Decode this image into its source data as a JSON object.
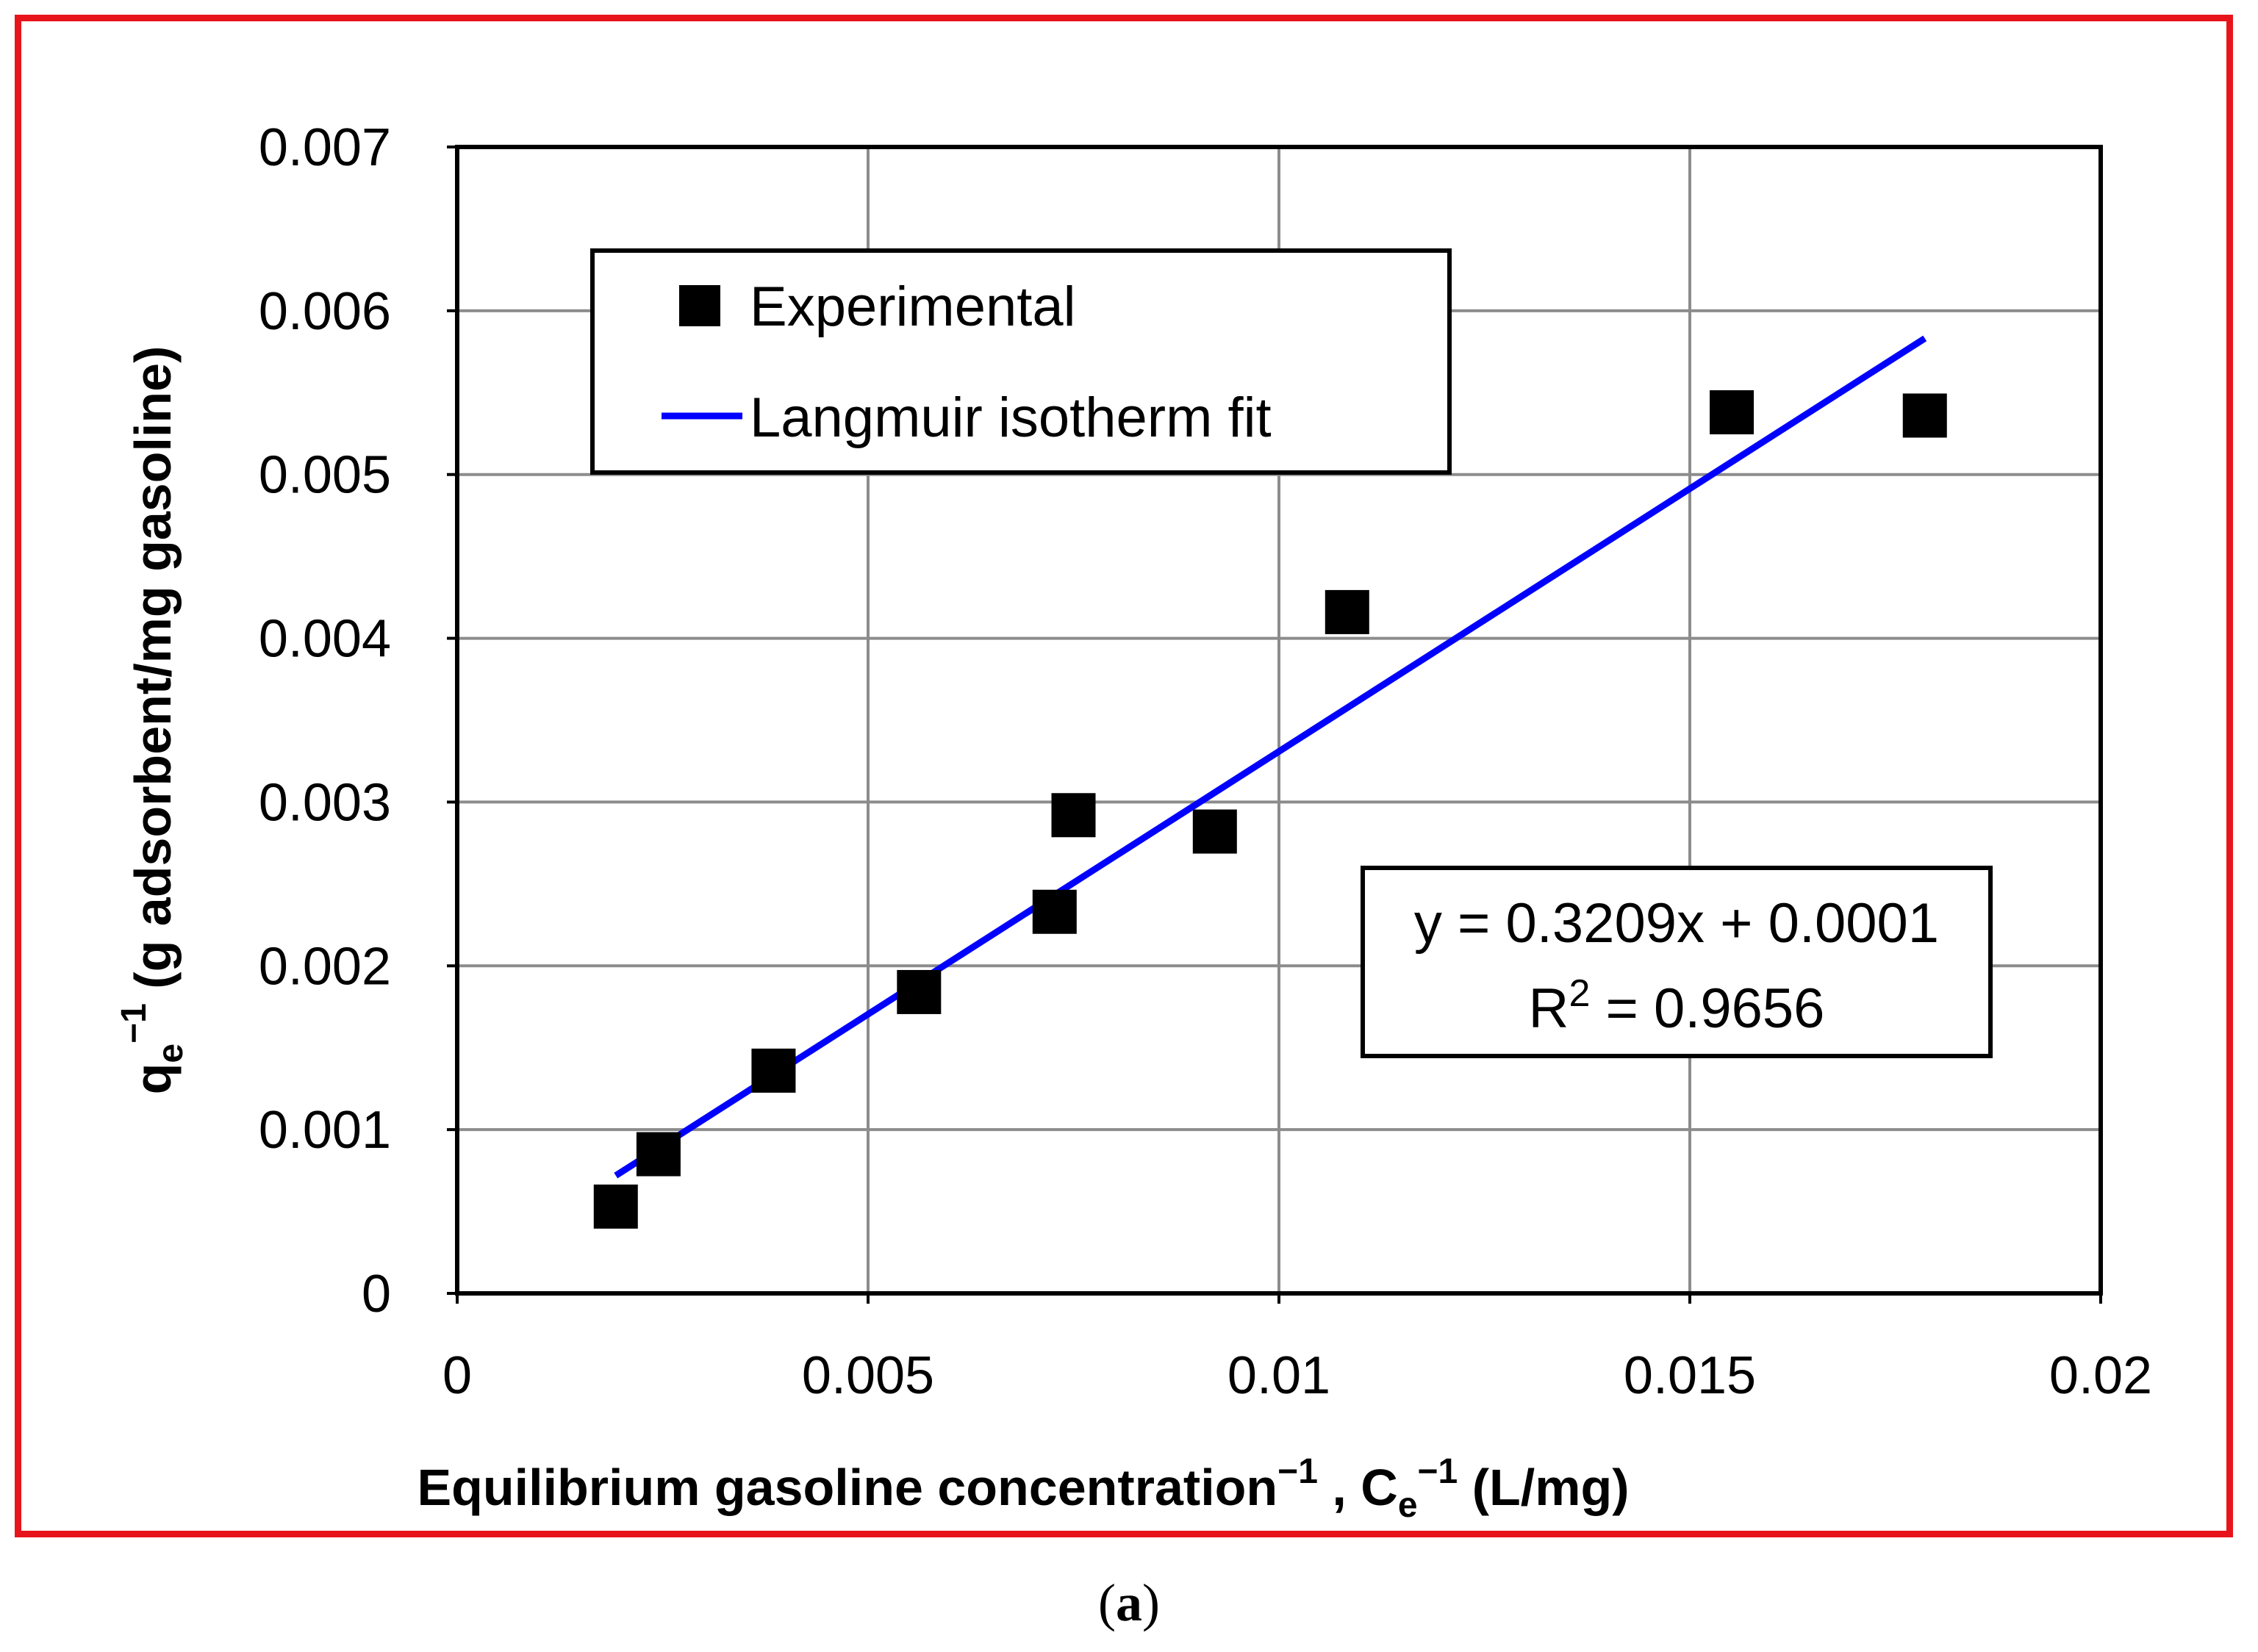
{
  "chart_data": {
    "type": "scatter",
    "title": "",
    "xlabel": "Equilibrium gasoline concentration⁻¹ , Cₑ⁻¹  (L/mg)",
    "xlabel_parts": {
      "main": "Equilibrium gasoline concentration",
      "sup1": "−1",
      "mid": " , C",
      "sub": "e",
      "sup2": "−1",
      "unit": "  (L/mg)"
    },
    "ylabel": "qₑ⁻¹ (g adsorbent/mg gasoline)",
    "ylabel_parts": {
      "base": "q",
      "sub": "e",
      "sup": "−1",
      "unit": "  (g adsorbent/mg gasoline)"
    },
    "xlim": [
      0,
      0.02
    ],
    "ylim": [
      0,
      0.007
    ],
    "xticks": [
      0,
      0.005,
      0.01,
      0.015,
      0.02
    ],
    "xtick_labels": [
      "0",
      "0.005",
      "0.01",
      "0.015",
      "0.02"
    ],
    "yticks": [
      0,
      0.001,
      0.002,
      0.003,
      0.004,
      0.005,
      0.006,
      0.007
    ],
    "ytick_labels": [
      "0",
      "0.001",
      "0.002",
      "0.003",
      "0.004",
      "0.005",
      "0.006",
      "0.007"
    ],
    "grid": true,
    "series": [
      {
        "name": "Experimental",
        "kind": "scatter",
        "marker": "square",
        "color": "#000000",
        "x": [
          0.00193,
          0.00245,
          0.00385,
          0.00562,
          0.00727,
          0.0075,
          0.00922,
          0.01083,
          0.01551,
          0.01786
        ],
        "y": [
          0.00053,
          0.00085,
          0.00136,
          0.00184,
          0.00233,
          0.00292,
          0.00282,
          0.00416,
          0.00538,
          0.00536
        ]
      },
      {
        "name": "Langmuir isotherm fit",
        "kind": "line",
        "color": "#0000ff",
        "slope": 0.3209,
        "intercept": 0.0001,
        "x": [
          0.00193,
          0.01786
        ]
      }
    ],
    "legend": {
      "position": "top-left",
      "entries": [
        "Experimental",
        "Langmuir isotherm fit"
      ]
    },
    "annotation": {
      "line1": "y = 0.3209x + 0.0001",
      "line2_base": "R",
      "line2_sup": "2",
      "line2_rest": " = 0.9656",
      "position": "right-middle"
    }
  },
  "caption": {
    "open": "(",
    "label": "a",
    "close": ")"
  },
  "colors": {
    "frame": "#e8141c",
    "grid": "#8c8c8c",
    "fit": "#0000ff",
    "marker": "#000000"
  }
}
